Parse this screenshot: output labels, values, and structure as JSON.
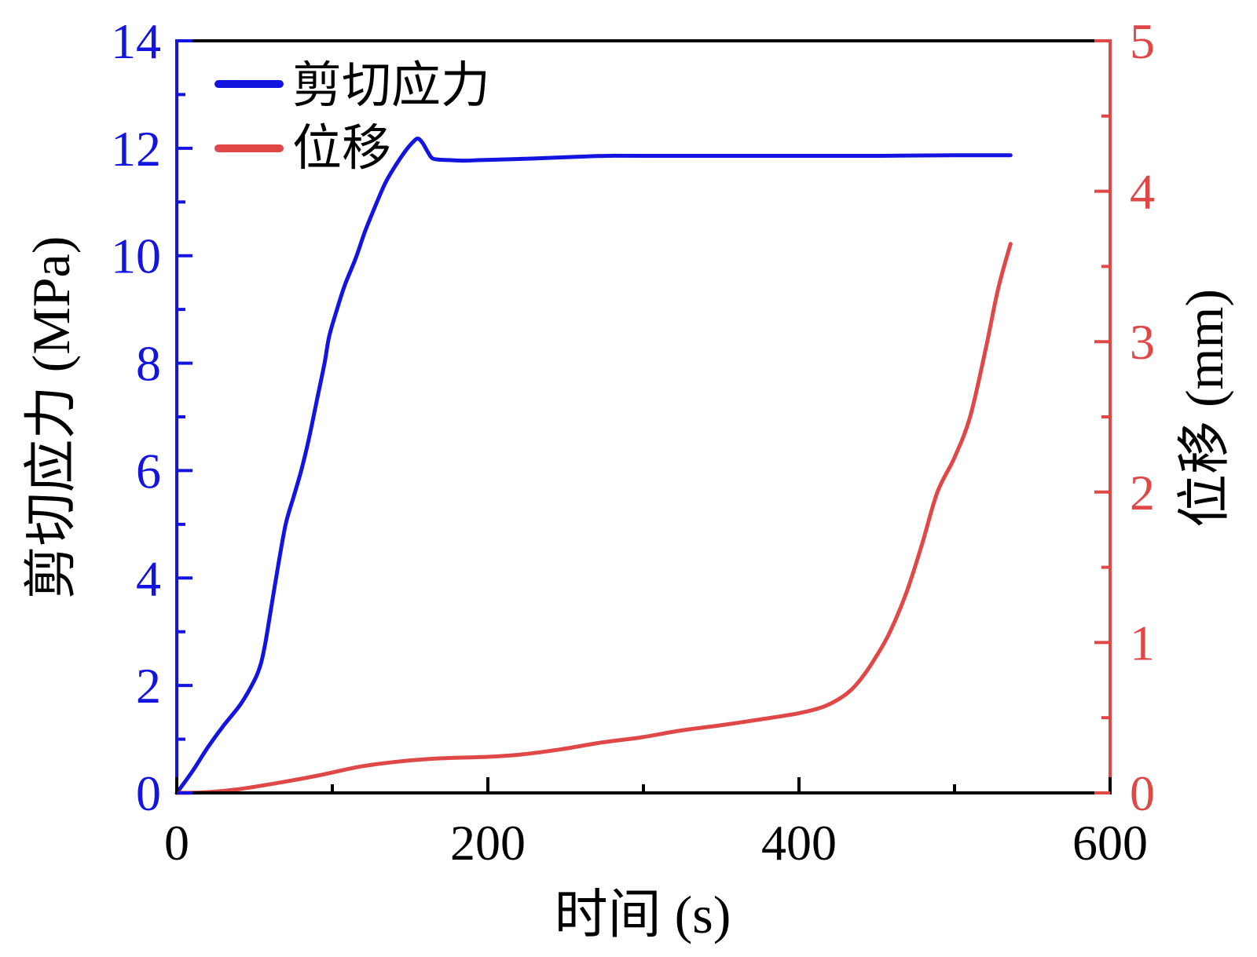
{
  "chart_data": {
    "type": "line",
    "xlabel": "时间 (s)",
    "ylabel": "剪切应力 (MPa)",
    "y2label": "位移 (mm)",
    "xlim": [
      0,
      600
    ],
    "ylim": [
      0,
      14
    ],
    "y2lim": [
      0,
      5
    ],
    "xticks": [
      0,
      200,
      400,
      600
    ],
    "x_minor_ticks": [
      100,
      300,
      500
    ],
    "yticks": [
      0,
      2,
      4,
      6,
      8,
      10,
      12,
      14
    ],
    "y_minor_ticks": [
      1,
      3,
      5,
      7,
      9,
      11,
      13
    ],
    "y2ticks": [
      0,
      1,
      2,
      3,
      4,
      5
    ],
    "y2_minor_ticks": [
      0.5,
      1.5,
      2.5,
      3.5,
      4.5
    ],
    "grid": false,
    "legend_position": "top-left",
    "axis_colors": {
      "left": "#1414e0",
      "right": "#e04848",
      "x": "#000000"
    },
    "series": [
      {
        "name": "剪切应力",
        "axis": "left",
        "color": "#1414e0",
        "x": [
          0,
          10,
          20,
          30,
          41,
          50,
          54,
          57,
          61,
          65,
          70,
          75,
          80,
          85,
          90,
          95,
          98,
          103,
          108,
          115,
          121,
          128,
          134,
          140,
          147,
          152,
          155,
          158,
          161,
          164,
          168,
          175,
          185,
          196,
          220,
          247,
          265,
          278,
          300,
          350,
          400,
          453,
          500,
          536
        ],
        "y": [
          0,
          0.4,
          0.85,
          1.25,
          1.65,
          2.1,
          2.4,
          2.8,
          3.5,
          4.2,
          5.0,
          5.5,
          6.0,
          6.6,
          7.3,
          8.0,
          8.5,
          9.0,
          9.45,
          9.95,
          10.45,
          10.95,
          11.35,
          11.65,
          11.95,
          12.12,
          12.18,
          12.1,
          11.95,
          11.82,
          11.79,
          11.78,
          11.77,
          11.78,
          11.8,
          11.83,
          11.85,
          11.86,
          11.86,
          11.86,
          11.86,
          11.86,
          11.87,
          11.87
        ]
      },
      {
        "name": "位移",
        "axis": "right",
        "color": "#e04848",
        "x": [
          0,
          20,
          40,
          67,
          93,
          118,
          144,
          170,
          200,
          221,
          247,
          273,
          299,
          324,
          350,
          376,
          400,
          415,
          425,
          433,
          440,
          448,
          458,
          469,
          479,
          489,
          500,
          510,
          520,
          528,
          536
        ],
        "y": [
          0,
          0.005,
          0.025,
          0.07,
          0.12,
          0.175,
          0.21,
          0.23,
          0.24,
          0.255,
          0.29,
          0.335,
          0.37,
          0.415,
          0.45,
          0.49,
          0.53,
          0.57,
          0.62,
          0.68,
          0.76,
          0.88,
          1.06,
          1.33,
          1.65,
          2.0,
          2.23,
          2.5,
          2.95,
          3.35,
          3.65
        ]
      }
    ]
  }
}
